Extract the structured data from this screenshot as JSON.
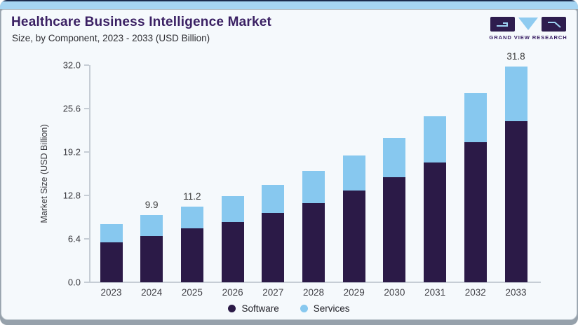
{
  "header": {
    "title": "Healthcare Business Intelligence Market",
    "subtitle": "Size, by Component, 2023 - 2033 (USD Billion)",
    "logo": {
      "text": "GRAND VIEW RESEARCH"
    }
  },
  "chart_data": {
    "type": "bar",
    "stacked": true,
    "title": "Healthcare Business Intelligence Market",
    "subtitle": "Size, by Component, 2023 - 2033 (USD Billion)",
    "categories": [
      "2023",
      "2024",
      "2025",
      "2026",
      "2027",
      "2028",
      "2029",
      "2030",
      "2031",
      "2032",
      "2033"
    ],
    "series": [
      {
        "name": "Software",
        "color": "#2b1a47",
        "values": [
          5.9,
          6.8,
          7.9,
          8.9,
          10.2,
          11.7,
          13.5,
          15.5,
          17.7,
          20.6,
          23.7
        ]
      },
      {
        "name": "Services",
        "color": "#87c8ef",
        "values": [
          2.7,
          3.1,
          3.3,
          3.8,
          4.2,
          4.7,
          5.2,
          5.8,
          6.8,
          7.3,
          8.1
        ]
      }
    ],
    "totals": [
      8.6,
      9.9,
      11.2,
      12.7,
      14.4,
      16.4,
      18.7,
      21.3,
      24.5,
      27.9,
      31.8
    ],
    "bar_value_labels": [
      "",
      "9.9",
      "11.2",
      "",
      "",
      "",
      "",
      "",
      "",
      "",
      "31.8"
    ],
    "ylabel": "Market Size (USD Billion)",
    "ytick_labels": [
      "0.0",
      "6.4",
      "12.8",
      "19.2",
      "25.6",
      "32.0"
    ],
    "ylim": [
      0,
      32
    ],
    "grid": "off",
    "legend_position": "bottom"
  },
  "colors": {
    "software": "#2b1a47",
    "services": "#87c8ef",
    "title_text": "#3a2063",
    "accent_bar": "#a6d5f3",
    "card_bg": "#f5f9fc",
    "axis_line": "#c6cdd5",
    "tick_text": "#3a3a3f"
  }
}
